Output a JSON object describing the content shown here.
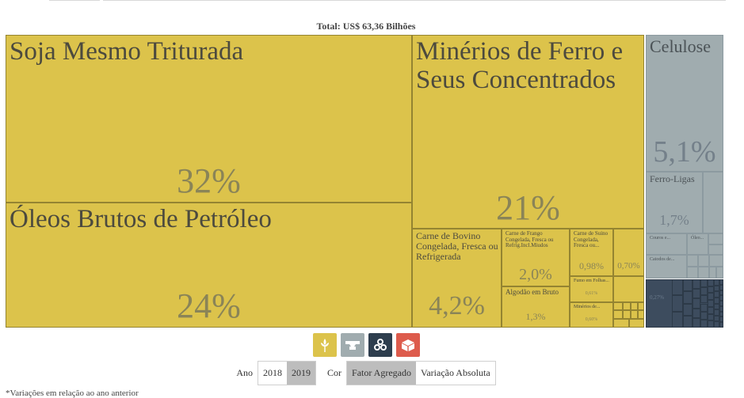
{
  "title": "Total: US$ 63,36 Bilhões",
  "colors": {
    "agro": "#dcc34b",
    "mineral": "#a0acaf",
    "industrial": "#3d4c5e",
    "other": "#dd5b4c"
  },
  "chart_data": {
    "type": "treemap",
    "title": "Total: US$ 63,36 Bilhões",
    "items": [
      {
        "label": "Soja Mesmo Triturada",
        "value": 32,
        "pct_label": "32%",
        "group": "agro"
      },
      {
        "label": "Óleos Brutos de Petróleo",
        "value": 24,
        "pct_label": "24%",
        "group": "agro"
      },
      {
        "label": "Minérios de Ferro e Seus Concentrados",
        "value": 21,
        "pct_label": "21%",
        "group": "agro"
      },
      {
        "label": "Carne de Bovino Congelada, Fresca ou Refrigerada",
        "value": 4.2,
        "pct_label": "4,2%",
        "group": "agro"
      },
      {
        "label": "Carne de Frango Congelada, Fresca ou Refrig.Incl.Miudos",
        "value": 2.0,
        "pct_label": "2,0%",
        "group": "agro"
      },
      {
        "label": "Algodão em Bruto",
        "value": 1.3,
        "pct_label": "1,3%",
        "group": "agro"
      },
      {
        "label": "Carne de Suino Congelada, Fresca ou...",
        "value": 0.98,
        "pct_label": "0,98%",
        "group": "agro"
      },
      {
        "label": "",
        "value": 0.7,
        "pct_label": "0,70%",
        "group": "agro"
      },
      {
        "label": "Fumo em Folhas...",
        "value": 0.61,
        "pct_label": "0,61%",
        "group": "agro"
      },
      {
        "label": "Minérios de...",
        "value": 0.6,
        "pct_label": "0,60%",
        "group": "agro"
      },
      {
        "label": "Celulose",
        "value": 5.1,
        "pct_label": "5,1%",
        "group": "mineral"
      },
      {
        "label": "Ferro-Ligas",
        "value": 1.7,
        "pct_label": "1,7%",
        "group": "mineral"
      },
      {
        "label": "Couros e...",
        "value": null,
        "pct_label": "",
        "group": "mineral"
      },
      {
        "label": "Óleo...",
        "value": null,
        "pct_label": "",
        "group": "mineral"
      },
      {
        "label": "Catodos de...",
        "value": null,
        "pct_label": "",
        "group": "mineral"
      },
      {
        "label": "",
        "value": 0.27,
        "pct_label": "0,27%",
        "group": "industrial"
      }
    ]
  },
  "icons": [
    "wheat-icon",
    "anvil-icon",
    "gears-icon",
    "box-icon"
  ],
  "controls": {
    "year_label": "Ano",
    "years": [
      "2018",
      "2019"
    ],
    "selected_year": "2019",
    "color_label": "Cor",
    "color_options": [
      "Fator Agregado",
      "Variação Absoluta"
    ],
    "selected_color": "Fator Agregado"
  },
  "footnote": "*Variações em relação ao ano anterior"
}
